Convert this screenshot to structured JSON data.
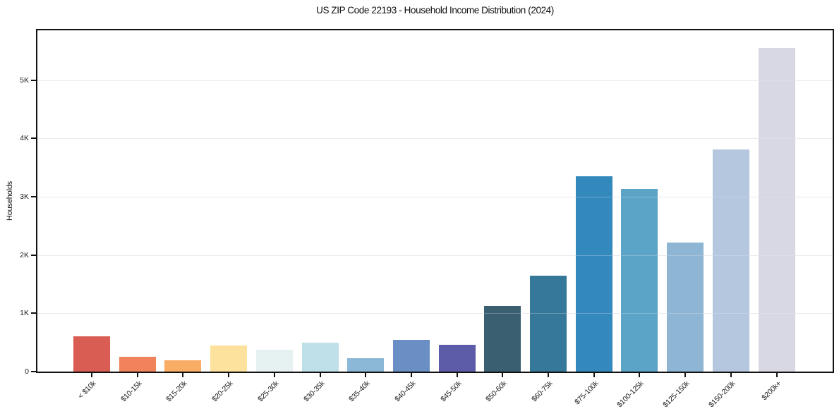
{
  "figure": {
    "background": "#ffffff"
  },
  "chart_data": {
    "type": "bar",
    "title": "US ZIP Code 22193 - Household Income Distribution (2024)",
    "xlabel": "",
    "ylabel": "Households",
    "categories": [
      "< $10k",
      "$10-15k",
      "$15-20k",
      "$20-25k",
      "$25-30k",
      "$30-35k",
      "$35-40k",
      "$40-45k",
      "$45-50k",
      "$50-60k",
      "$60-75k",
      "$75-100k",
      "$100-125k",
      "$125-150k",
      "$150-200k",
      "$200k+"
    ],
    "values": [
      605,
      250,
      190,
      450,
      380,
      490,
      235,
      550,
      455,
      1120,
      1650,
      3350,
      3130,
      2210,
      3805,
      5555
    ],
    "bar_colors": [
      "#d95d53",
      "#f0825c",
      "#f9ac64",
      "#fce29c",
      "#e6f1f2",
      "#bfdfe9",
      "#8cb8d8",
      "#6a8fc4",
      "#5d5ca9",
      "#3a5f70",
      "#35789a",
      "#3489bc",
      "#5ca4c7",
      "#8eb5d3",
      "#b4c7de",
      "#d7d8e4"
    ],
    "ylim": [
      0,
      5855
    ],
    "yticks": [
      {
        "value": 0,
        "label": "0"
      },
      {
        "value": 1000,
        "label": "1K"
      },
      {
        "value": 2000,
        "label": "2K"
      },
      {
        "value": 3000,
        "label": "3K"
      },
      {
        "value": 4000,
        "label": "4K"
      },
      {
        "value": 5000,
        "label": "5K"
      }
    ],
    "grid": "horizontal",
    "grid_color": "#e8e8f0",
    "spine_color": "#111111",
    "tick_label_rotation": 45,
    "legend": "none"
  }
}
